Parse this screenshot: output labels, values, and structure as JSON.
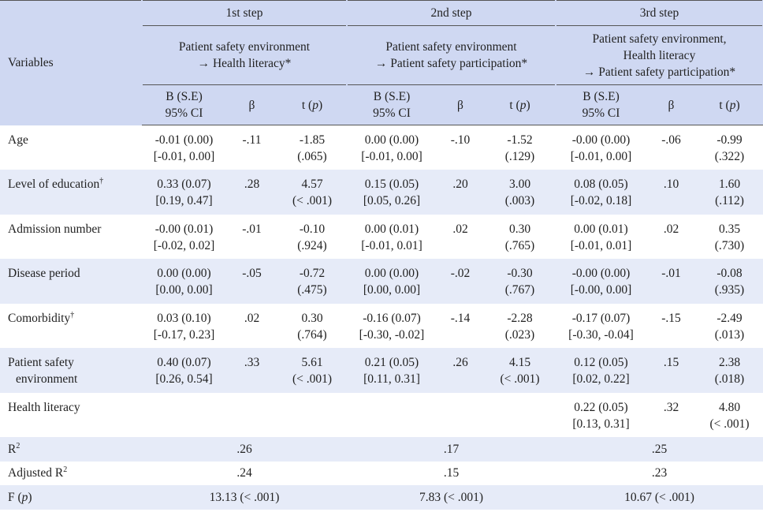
{
  "header": {
    "variables": "Variables",
    "steps": [
      {
        "name": "1st step",
        "model": [
          "Patient safety environment",
          "→ Health literacy*"
        ]
      },
      {
        "name": "2nd step",
        "model": [
          "Patient safety environment",
          "→ Patient safety participation*"
        ]
      },
      {
        "name": "3rd step",
        "model": [
          "Patient safety environment,",
          "Health literacy",
          "→ Patient safety participation*"
        ]
      }
    ],
    "columns": {
      "b": [
        "B (S.E)",
        "95% CI"
      ],
      "beta": "β",
      "t": {
        "text": "t (",
        "italic": "p",
        "after": ")"
      }
    }
  },
  "rows": [
    {
      "label": {
        "text": "Age"
      },
      "steps": [
        {
          "b": "-0.01 (0.00)",
          "ci": "[-0.01, 0.00]",
          "beta": "-.11",
          "t": "-1.85",
          "p": "(.065)"
        },
        {
          "b": "0.00 (0.00)",
          "ci": "[-0.01, 0.00]",
          "beta": "-.10",
          "t": "-1.52",
          "p": "(.129)"
        },
        {
          "b": "-0.00 (0.00)",
          "ci": "[-0.01, 0.00]",
          "beta": "-.06",
          "t": "-0.99",
          "p": "(.322)"
        }
      ]
    },
    {
      "label": {
        "text": "Level of education",
        "sup": "†"
      },
      "steps": [
        {
          "b": "0.33 (0.07)",
          "ci": "[0.19, 0.47]",
          "beta": ".28",
          "t": "4.57",
          "p": "(< .001)"
        },
        {
          "b": "0.15 (0.05)",
          "ci": "[0.05, 0.26]",
          "beta": ".20",
          "t": "3.00",
          "p": "(.003)"
        },
        {
          "b": "0.08 (0.05)",
          "ci": "[-0.02, 0.18]",
          "beta": ".10",
          "t": "1.60",
          "p": "(.112)"
        }
      ]
    },
    {
      "label": {
        "text": "Admission number"
      },
      "steps": [
        {
          "b": "-0.00 (0.01)",
          "ci": "[-0.02, 0.02]",
          "beta": "-.01",
          "t": "-0.10",
          "p": "(.924)"
        },
        {
          "b": "0.00 (0.01)",
          "ci": "[-0.01, 0.01]",
          "beta": ".02",
          "t": "0.30",
          "p": "(.765)"
        },
        {
          "b": "0.00 (0.01)",
          "ci": "[-0.01, 0.01]",
          "beta": ".02",
          "t": "0.35",
          "p": "(.730)"
        }
      ]
    },
    {
      "label": {
        "text": "Disease period"
      },
      "steps": [
        {
          "b": "0.00 (0.00)",
          "ci": "[0.00, 0.00]",
          "beta": "-.05",
          "t": "-0.72",
          "p": "(.475)"
        },
        {
          "b": "0.00 (0.00)",
          "ci": "[0.00, 0.00]",
          "beta": "-.02",
          "t": "-0.30",
          "p": "(.767)"
        },
        {
          "b": "-0.00 (0.00)",
          "ci": "[-0.00, 0.00]",
          "beta": "-.01",
          "t": "-0.08",
          "p": "(.935)"
        }
      ]
    },
    {
      "label": {
        "text": "Comorbidity",
        "sup": "†"
      },
      "steps": [
        {
          "b": "0.03 (0.10)",
          "ci": "[-0.17, 0.23]",
          "beta": ".02",
          "t": "0.30",
          "p": "(.764)"
        },
        {
          "b": "-0.16 (0.07)",
          "ci": "[-0.30, -0.02]",
          "beta": "-.14",
          "t": "-2.28",
          "p": "(.023)"
        },
        {
          "b": "-0.17 (0.07)",
          "ci": "[-0.30, -0.04]",
          "beta": "-.15",
          "t": "-2.49",
          "p": "(.013)"
        }
      ]
    },
    {
      "label": {
        "lines": [
          "Patient safety",
          "environment"
        ]
      },
      "steps": [
        {
          "b": "0.40 (0.07)",
          "ci": "[0.26, 0.54]",
          "beta": ".33",
          "t": "5.61",
          "p": "(< .001)"
        },
        {
          "b": "0.21 (0.05)",
          "ci": "[0.11, 0.31]",
          "beta": ".26",
          "t": "4.15",
          "p": "(< .001)"
        },
        {
          "b": "0.12 (0.05)",
          "ci": "[0.02, 0.22]",
          "beta": ".15",
          "t": "2.38",
          "p": "(.018)"
        }
      ]
    },
    {
      "label": {
        "text": "Health literacy"
      },
      "steps": [
        null,
        null,
        {
          "b": "0.22 (0.05)",
          "ci": "[0.13, 0.31]",
          "beta": ".32",
          "t": "4.80",
          "p": "(< .001)"
        }
      ]
    }
  ],
  "summary": [
    {
      "label": {
        "text": "R",
        "sup": "2"
      },
      "values": [
        ".26",
        ".17",
        ".25"
      ]
    },
    {
      "label": {
        "text": "Adjusted R",
        "sup": "2"
      },
      "values": [
        ".24",
        ".15",
        ".23"
      ]
    },
    {
      "label": {
        "text": "F (",
        "italic": "p",
        "after": ")"
      },
      "values": [
        "13.13 (< .001)",
        "7.83 (< .001)",
        "10.67 (< .001)"
      ]
    }
  ]
}
